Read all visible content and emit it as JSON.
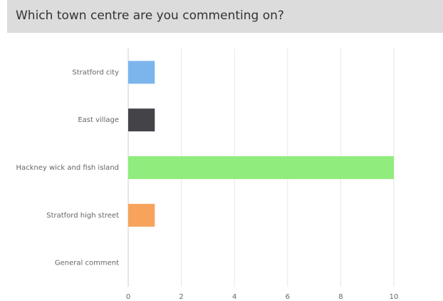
{
  "chart_data": {
    "type": "bar",
    "orientation": "horizontal",
    "title": "Which town centre are you commenting on?",
    "categories": [
      "Stratford city",
      "East village",
      "Hackney wick and fish island",
      "Stratford high street",
      "General comment"
    ],
    "values": [
      1,
      1,
      10,
      1,
      0
    ],
    "colors": [
      "#7cb5ec",
      "#434348",
      "#90ed7d",
      "#f7a35c",
      "#8085e9"
    ],
    "xlim": [
      0,
      12
    ],
    "xticks": [
      0,
      2,
      4,
      6,
      8,
      10,
      12
    ],
    "grid": true
  }
}
